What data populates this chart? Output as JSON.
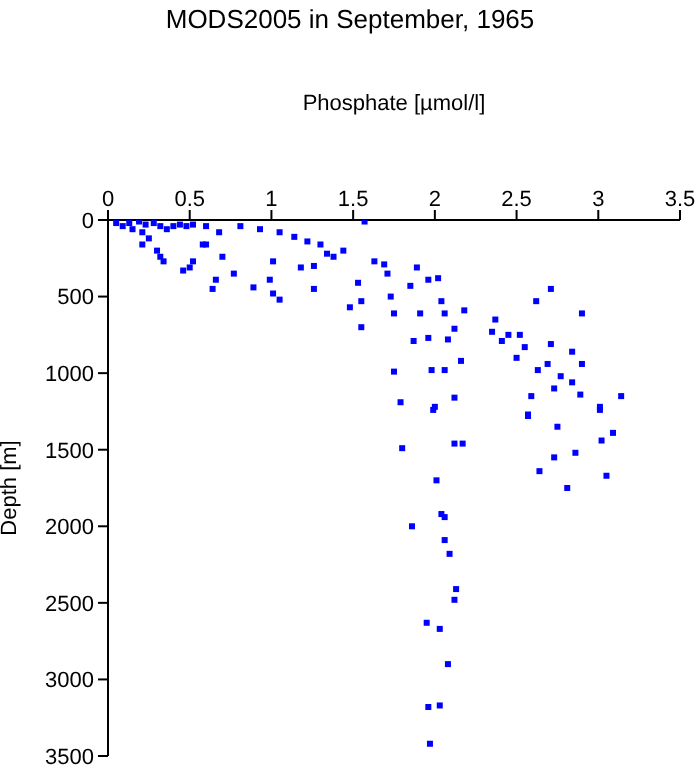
{
  "chart_data": {
    "type": "scatter",
    "title": "MODS2005 in September, 1965",
    "xlabel": "Phosphate [µmol/l]",
    "ylabel": "Depth [m]",
    "xlim": [
      0,
      3.5
    ],
    "xticks": [
      0,
      0.5,
      1,
      1.5,
      2,
      2.5,
      3,
      3.5
    ],
    "ylim": [
      3500,
      0
    ],
    "yticks": [
      0,
      500,
      1000,
      1500,
      2000,
      2500,
      3000,
      3500
    ],
    "grid": false,
    "marker": "square",
    "series": [
      {
        "color": "#0000ff",
        "x": [
          0.05,
          0.09,
          0.13,
          0.15,
          0.19,
          0.21,
          0.23,
          0.25,
          0.28,
          0.32,
          0.34,
          0.36,
          0.4,
          0.44,
          0.48,
          0.52,
          0.6,
          0.68,
          0.81,
          0.93,
          1.05,
          1.14,
          1.22,
          1.3,
          1.34,
          1.38,
          1.44,
          1.57,
          0.21,
          0.3,
          0.32,
          0.46,
          0.5,
          0.52,
          0.58,
          0.6,
          0.66,
          0.64,
          0.7,
          0.77,
          0.89,
          0.99,
          1.01,
          1.01,
          1.05,
          1.18,
          1.26,
          1.26,
          1.53,
          1.55,
          1.48,
          1.55,
          1.63,
          1.69,
          1.71,
          1.73,
          1.75,
          1.75,
          1.79,
          1.87,
          1.89,
          1.85,
          1.91,
          1.96,
          1.98,
          2.0,
          2.06,
          2.04,
          2.06,
          2.08,
          2.12,
          2.16,
          2.12,
          2.18,
          1.96,
          2.02,
          2.35,
          2.37,
          2.45,
          2.52,
          2.41,
          2.5,
          2.55,
          2.62,
          2.71,
          2.71,
          2.63,
          2.69,
          2.77,
          2.84,
          2.9,
          2.9,
          2.84,
          2.73,
          2.59,
          2.89,
          3.01,
          3.14,
          2.57,
          1.99,
          2.57,
          2.75,
          3.01,
          3.09,
          3.02,
          1.8,
          2.12,
          2.17,
          2.86,
          2.73,
          2.64,
          3.05,
          2.81,
          2.01,
          2.04,
          2.06,
          1.86,
          2.06,
          2.09,
          2.13,
          2.12,
          1.95,
          2.03,
          2.08,
          1.96,
          2.03,
          1.97
        ],
        "values": [
          20,
          40,
          20,
          60,
          10,
          80,
          30,
          120,
          20,
          40,
          270,
          60,
          40,
          30,
          40,
          30,
          40,
          80,
          40,
          60,
          80,
          110,
          140,
          160,
          220,
          240,
          200,
          10,
          160,
          200,
          240,
          330,
          310,
          270,
          160,
          160,
          390,
          450,
          240,
          350,
          440,
          390,
          270,
          480,
          520,
          310,
          450,
          300,
          410,
          530,
          570,
          700,
          270,
          290,
          350,
          500,
          610,
          990,
          1190,
          790,
          310,
          430,
          610,
          770,
          980,
          1220,
          980,
          530,
          610,
          780,
          710,
          920,
          1160,
          590,
          390,
          380,
          730,
          650,
          750,
          750,
          790,
          900,
          830,
          530,
          450,
          810,
          980,
          940,
          1020,
          860,
          610,
          940,
          1060,
          1100,
          1150,
          1140,
          1220,
          1150,
          1270,
          1240,
          1280,
          1350,
          1240,
          1390,
          1440,
          1490,
          1460,
          1460,
          1520,
          1550,
          1640,
          1670,
          1750,
          1700,
          1920,
          1940,
          2000,
          2090,
          2180,
          2410,
          2480,
          2630,
          2670,
          2900,
          3180,
          3170,
          3420
        ]
      }
    ]
  }
}
